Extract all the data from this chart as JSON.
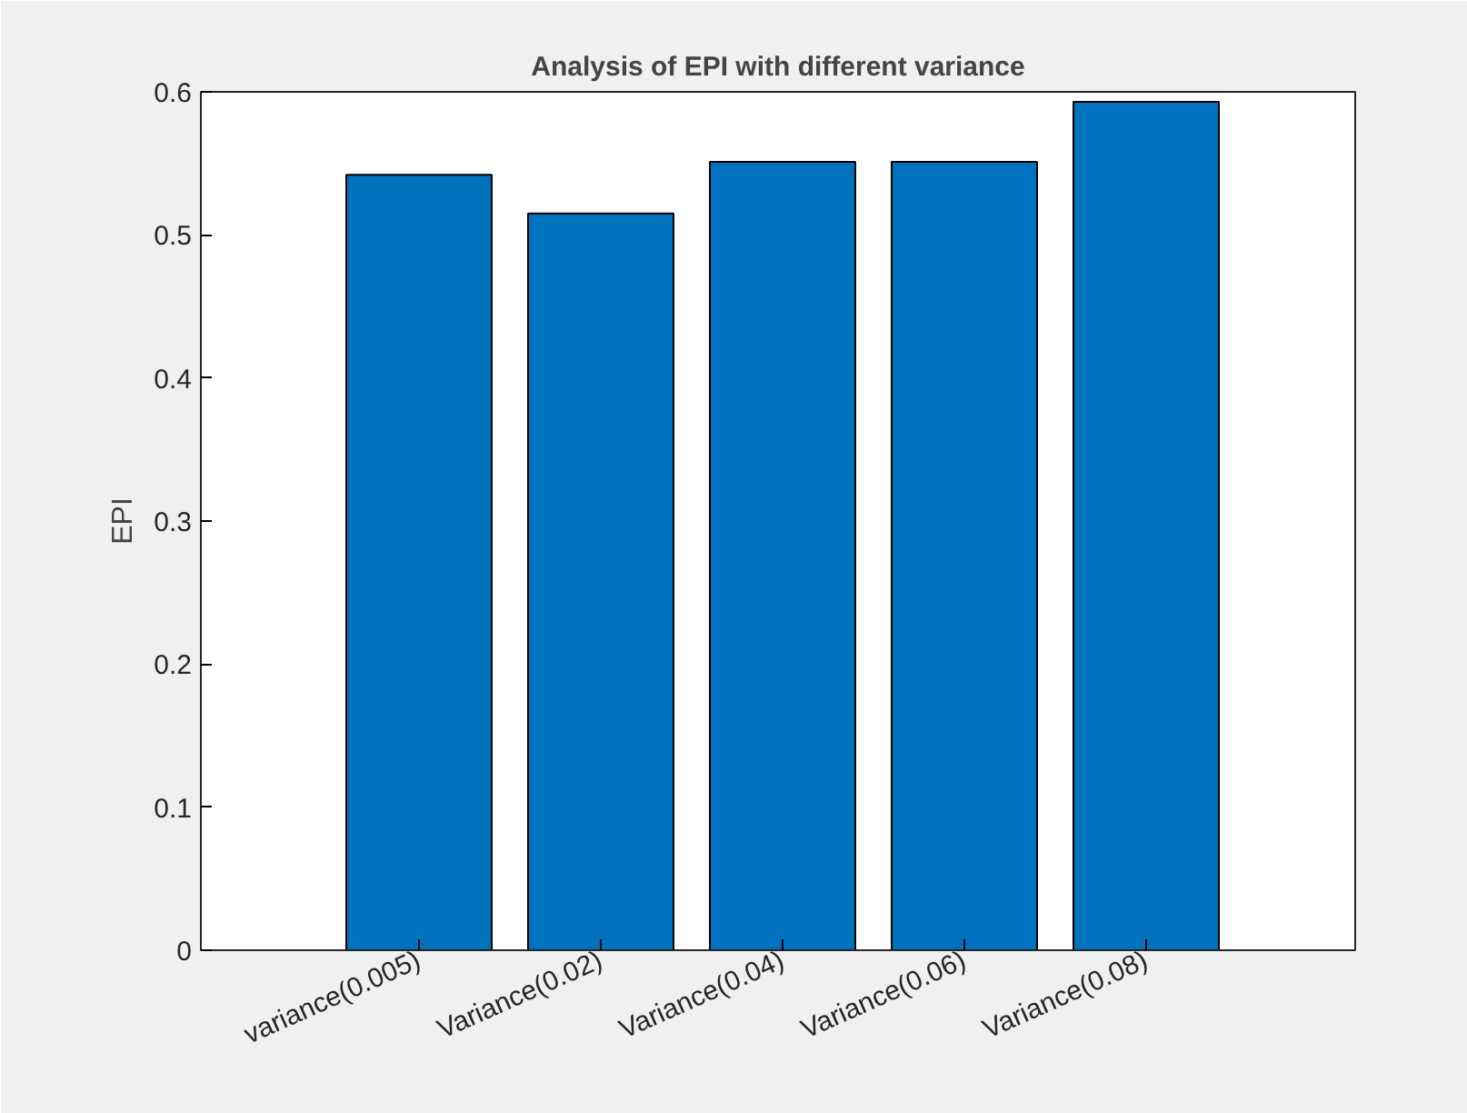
{
  "chart_data": {
    "type": "bar",
    "title": "Analysis of EPI with different variance",
    "ylabel": "EPI",
    "categories": [
      "variance(0.005)",
      "Variance(0.02)",
      "Variance(0.04)",
      "Variance(0.06)",
      "Variance(0.08)"
    ],
    "values": [
      0.542,
      0.515,
      0.551,
      0.551,
      0.593
    ],
    "color": "#0072bd",
    "ylim": [
      0,
      0.6
    ],
    "yticks": [
      0,
      0.1,
      0.2,
      0.3,
      0.4,
      0.5,
      0.6
    ],
    "grid": false
  }
}
